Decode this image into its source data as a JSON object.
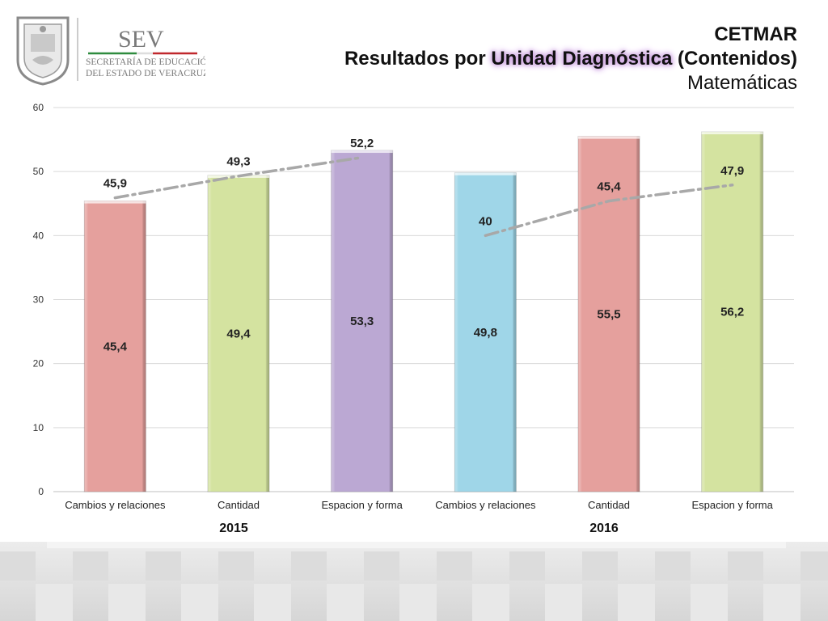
{
  "header": {
    "org_acronym": "SEV",
    "org_line1": "SECRETARÍA DE EDUCACIÓN",
    "org_line2": "DEL ESTADO DE VERACRUZ",
    "title_line1": "CETMAR",
    "title_line2_pre": "Resultados por ",
    "title_line2_hl": "Unidad Diagnóstica",
    "title_line2_post": " (Contenidos)",
    "title_line3": "Matemáticas"
  },
  "chart_data": {
    "type": "bar",
    "ylim": [
      0,
      60
    ],
    "yticks": [
      0,
      10,
      20,
      30,
      40,
      50,
      60
    ],
    "grid": true,
    "categories": [
      "Cambios y relaciones",
      "Cantidad",
      "Espacion y forma",
      "Cambios y relaciones",
      "Cantidad",
      "Espacion y forma"
    ],
    "groups": [
      {
        "label": "2015",
        "start": 0,
        "end": 2
      },
      {
        "label": "2016",
        "start": 3,
        "end": 5
      }
    ],
    "series": [
      {
        "type": "bar",
        "values": [
          45.4,
          49.4,
          53.3,
          49.8,
          55.5,
          56.2
        ],
        "labels": [
          "45,4",
          "49,4",
          "53,3",
          "49,8",
          "55,5",
          "56,2"
        ],
        "colors": [
          "#e5a09d",
          "#d4e3a0",
          "#bba8d3",
          "#9fd6e8",
          "#e5a09d",
          "#d4e3a0"
        ]
      },
      {
        "type": "line",
        "style": "dash-dot",
        "color": "#a8a8a8",
        "segments": [
          {
            "indices": [
              0,
              1,
              2
            ],
            "values": [
              45.9,
              49.3,
              52.2
            ],
            "labels": [
              "45,9",
              "49,3",
              "52,2"
            ]
          },
          {
            "indices": [
              3,
              4,
              5
            ],
            "values": [
              40,
              45.4,
              47.9
            ],
            "labels": [
              "40",
              "45,4",
              "47,9"
            ]
          }
        ]
      }
    ]
  }
}
